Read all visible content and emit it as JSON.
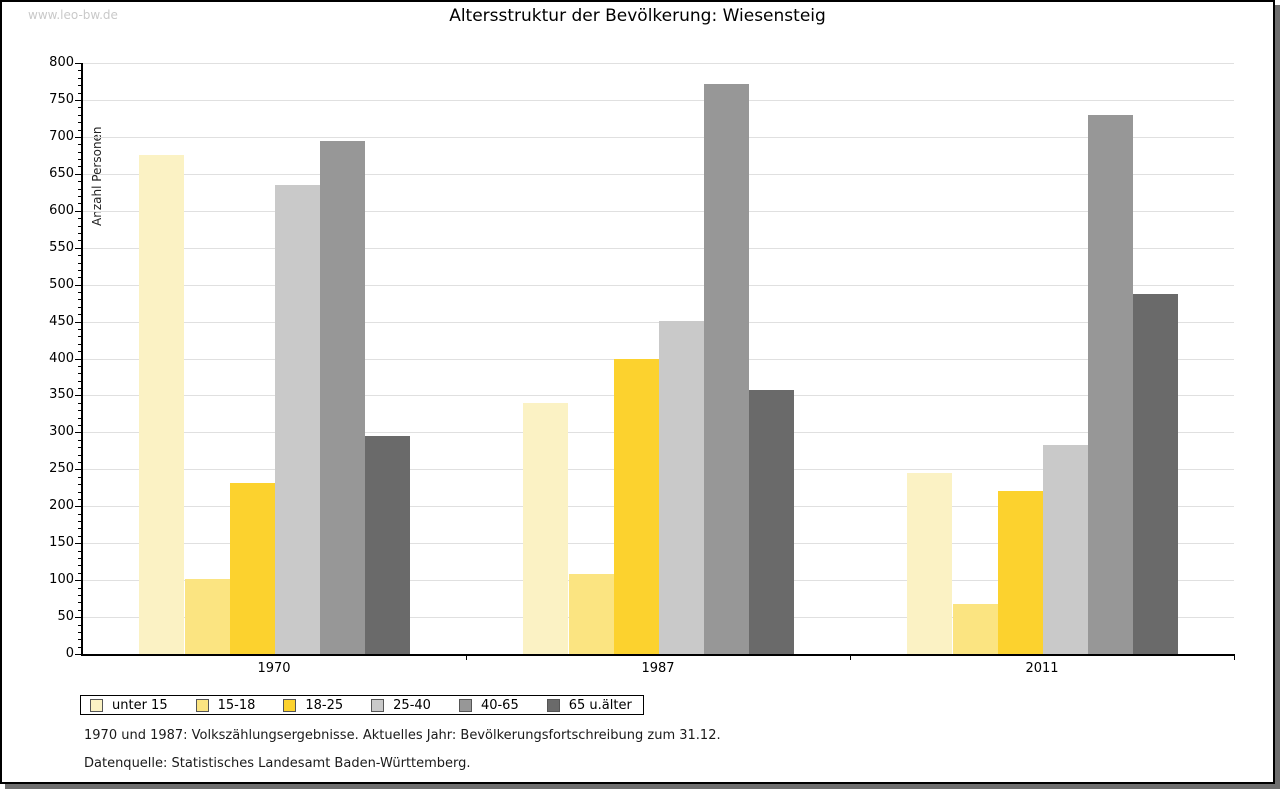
{
  "watermark": "www.leo-bw.de",
  "title": "Altersstruktur der Bevölkerung: Wiesensteig",
  "footer": {
    "line1": "1970 und 1987: Volkszählungsergebnisse. Aktuelles Jahr: Bevölkerungsfortschreibung zum 31.12.",
    "line2": "Datenquelle: Statistisches Landesamt Baden-Württemberg."
  },
  "colors": {
    "grid": "#e0e0e0",
    "axis": "#000000",
    "frame_shadow": "#6e6e6e",
    "watermark": "#c9c9c9"
  },
  "chart_data": {
    "type": "bar",
    "title": "Altersstruktur der Bevölkerung: Wiesensteig",
    "xlabel": "",
    "ylabel": "Anzahl Personen",
    "ylim": [
      0,
      800
    ],
    "ytick_step": 50,
    "yminor_step": 10,
    "grid": true,
    "legend_position": "bottom",
    "categories": [
      "1970",
      "1987",
      "2011"
    ],
    "series": [
      {
        "name": "unter 15",
        "color": "#FBF2C4",
        "values": [
          675,
          340,
          245
        ]
      },
      {
        "name": "15-18",
        "color": "#FBE481",
        "values": [
          102,
          108,
          68
        ]
      },
      {
        "name": "18-25",
        "color": "#FCD22E",
        "values": [
          231,
          400,
          221
        ]
      },
      {
        "name": "25-40",
        "color": "#C9C9C9",
        "values": [
          635,
          451,
          283
        ]
      },
      {
        "name": "40-65",
        "color": "#979797",
        "values": [
          695,
          771,
          730
        ]
      },
      {
        "name": "65 u.älter",
        "color": "#6A6A6A",
        "values": [
          295,
          357,
          487
        ]
      }
    ]
  }
}
